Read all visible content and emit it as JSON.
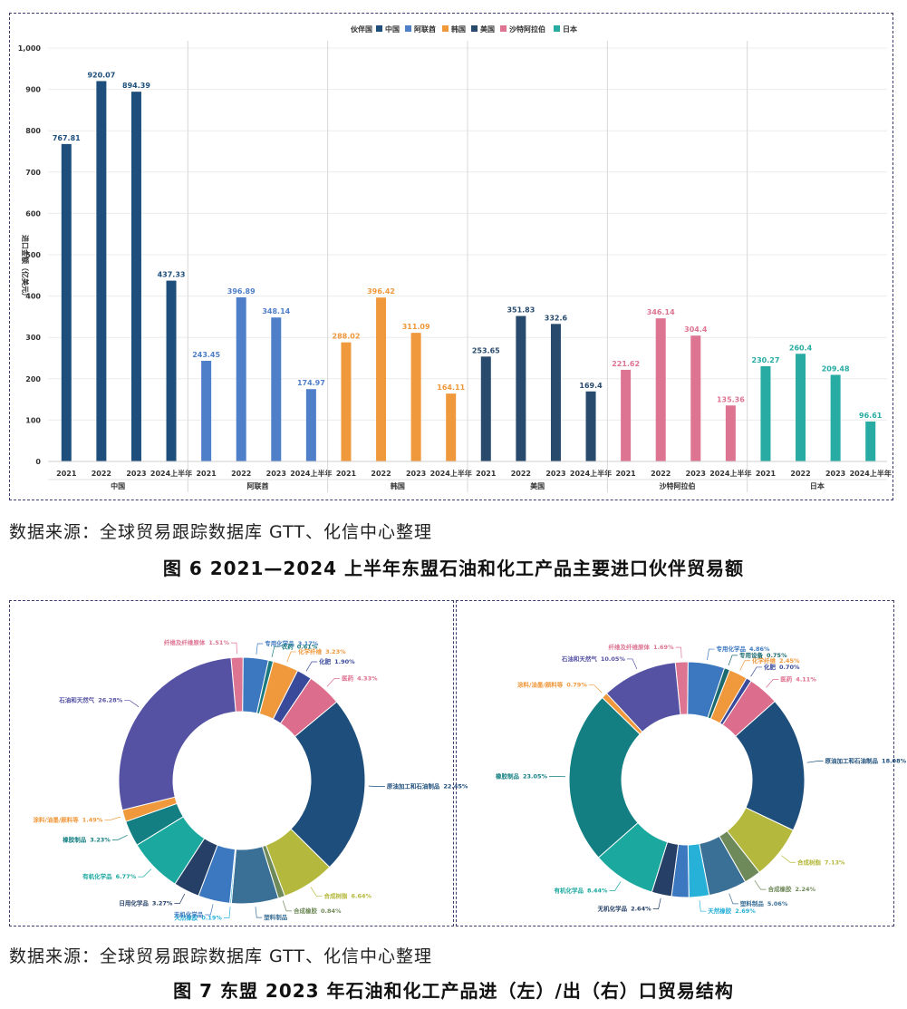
{
  "figure6": {
    "source": "数据来源：全球贸易跟踪数据库 GTT、化信中心整理",
    "caption": "图 6 2021—2024 上半年东盟石油和化工产品主要进口伙伴贸易额"
  },
  "figure7": {
    "source": "数据来源：全球贸易跟踪数据库 GTT、化信中心整理",
    "caption": "图 7 东盟 2023 年石油和化工产品进（左）/出（右）口贸易结构"
  },
  "chart_data": [
    {
      "type": "bar",
      "ylabel": "进口金额（亿美元）",
      "ylim": [
        0,
        1000
      ],
      "yticks": [
        "0",
        "100",
        "200",
        "300",
        "400",
        "500",
        "600",
        "700",
        "800",
        "900",
        "1,000"
      ],
      "legend_title": "伙伴国",
      "legend_position": "top-center",
      "grid": true,
      "categories": [
        "2021",
        "2022",
        "2023",
        "2024上半年"
      ],
      "series": [
        {
          "name": "中国",
          "color": "#1e4f7c",
          "values": [
            767.81,
            920.07,
            894.39,
            437.33
          ],
          "labels": [
            "767.81",
            "920.07",
            "894.39",
            "437.33"
          ]
        },
        {
          "name": "阿联酋",
          "color": "#4f7fc9",
          "values": [
            243.45,
            396.89,
            348.14,
            174.97
          ],
          "labels": [
            "243.45",
            "396.89",
            "348.14",
            "174.97"
          ]
        },
        {
          "name": "韩国",
          "color": "#f0983c",
          "values": [
            288.02,
            396.42,
            311.09,
            164.11
          ],
          "labels": [
            "288.02",
            "396.42",
            "311.09",
            "164.11"
          ]
        },
        {
          "name": "美国",
          "color": "#284a6d",
          "values": [
            253.65,
            351.83,
            332.6,
            169.4
          ],
          "labels": [
            "253.65",
            "351.83",
            "332.6",
            "169.4"
          ]
        },
        {
          "name": "沙特阿拉伯",
          "color": "#dd7492",
          "values": [
            221.62,
            346.14,
            304.4,
            135.36
          ],
          "labels": [
            "221.62",
            "346.14",
            "304.4",
            "135.36"
          ]
        },
        {
          "name": "日本",
          "color": "#27aba3",
          "values": [
            230.27,
            260.4,
            209.48,
            96.61
          ],
          "labels": [
            "230.27",
            "260.4",
            "209.48",
            "96.61"
          ]
        }
      ]
    },
    {
      "type": "pie",
      "variant": "donut",
      "slices": [
        {
          "name": "纤维及纤维原体",
          "label": "1.51%",
          "value": 1.51,
          "color": "#dd7492"
        },
        {
          "name": "专用化学品",
          "label": "3.17%",
          "value": 3.17,
          "color": "#3c78c0"
        },
        {
          "name": "农药",
          "label": "0.61%",
          "value": 0.61,
          "color": "#1a7a80"
        },
        {
          "name": "化学纤维",
          "label": "3.23%",
          "value": 3.23,
          "color": "#f0983c"
        },
        {
          "name": "化肥",
          "label": "1.90%",
          "value": 1.9,
          "color": "#3a4a9a"
        },
        {
          "name": "医药",
          "label": "4.33%",
          "value": 4.33,
          "color": "#dd6d8c"
        },
        {
          "name": "原油加工和石油制品",
          "label": "22.45%",
          "value": 22.45,
          "color": "#1e4f7c"
        },
        {
          "name": "合成树脂",
          "label": "6.64%",
          "value": 6.64,
          "color": "#b4b83c"
        },
        {
          "name": "合成橡胶",
          "label": "0.84%",
          "value": 0.84,
          "color": "#6f8a5a"
        },
        {
          "name": "塑料制品",
          "label": "",
          "value": 5.9,
          "color": "#3a6f96"
        },
        {
          "name": "天然橡胶",
          "label": "0.19%",
          "value": 0.19,
          "color": "#27b0d8"
        },
        {
          "name": "无机化学品",
          "label": "",
          "value": 4.0,
          "color": "#3c78c0"
        },
        {
          "name": "日用化学品",
          "label": "3.27%",
          "value": 3.27,
          "color": "#253f66"
        },
        {
          "name": "有机化学品",
          "label": "6.77%",
          "value": 6.77,
          "color": "#1aa89f"
        },
        {
          "name": "橡胶制品",
          "label": "3.23%",
          "value": 3.23,
          "color": "#137f82"
        },
        {
          "name": "涂料/油墨/颜料等",
          "label": "1.49%",
          "value": 1.49,
          "color": "#f0983c"
        },
        {
          "name": "石油和天然气",
          "label": "26.28%",
          "value": 26.28,
          "color": "#5552a3"
        }
      ]
    },
    {
      "type": "pie",
      "variant": "donut",
      "slices": [
        {
          "name": "纤维及纤维原体",
          "label": "1.69%",
          "value": 1.69,
          "color": "#dd7492"
        },
        {
          "name": "专用化学品",
          "label": "4.86%",
          "value": 4.86,
          "color": "#3c78c0"
        },
        {
          "name": "专用设备",
          "label": "0.75%",
          "value": 0.75,
          "color": "#1a6a70"
        },
        {
          "name": "化学纤维",
          "label": "2.45%",
          "value": 2.45,
          "color": "#f0983c"
        },
        {
          "name": "化肥",
          "label": "0.70%",
          "value": 0.7,
          "color": "#3a4a9a"
        },
        {
          "name": "医药",
          "label": "4.11%",
          "value": 4.11,
          "color": "#dd6d8c"
        },
        {
          "name": "原油加工和石油制品",
          "label": "18.08%",
          "value": 18.08,
          "color": "#1e4f7c"
        },
        {
          "name": "合成树脂",
          "label": "7.13%",
          "value": 7.13,
          "color": "#b4b83c"
        },
        {
          "name": "合成橡胶",
          "label": "2.24%",
          "value": 2.24,
          "color": "#6f8a5a"
        },
        {
          "name": "塑料制品",
          "label": "5.06%",
          "value": 5.06,
          "color": "#3a6f96"
        },
        {
          "name": "天然橡胶",
          "label": "2.69%",
          "value": 2.69,
          "color": "#27b0d8"
        },
        {
          "name": "",
          "label": "",
          "value": 2.3,
          "color": "#3c78c0"
        },
        {
          "name": "无机化学品",
          "label": "2.64%",
          "value": 2.64,
          "color": "#253f66"
        },
        {
          "name": "有机化学品",
          "label": "8.44%",
          "value": 8.44,
          "color": "#1aa89f"
        },
        {
          "name": "橡胶制品",
          "label": "23.05%",
          "value": 23.05,
          "color": "#137f82"
        },
        {
          "name": "涂料/油墨/颜料等",
          "label": "0.79%",
          "value": 0.79,
          "color": "#f0983c"
        },
        {
          "name": "石油和天然气",
          "label": "10.05%",
          "value": 10.05,
          "color": "#5552a3"
        }
      ]
    }
  ]
}
